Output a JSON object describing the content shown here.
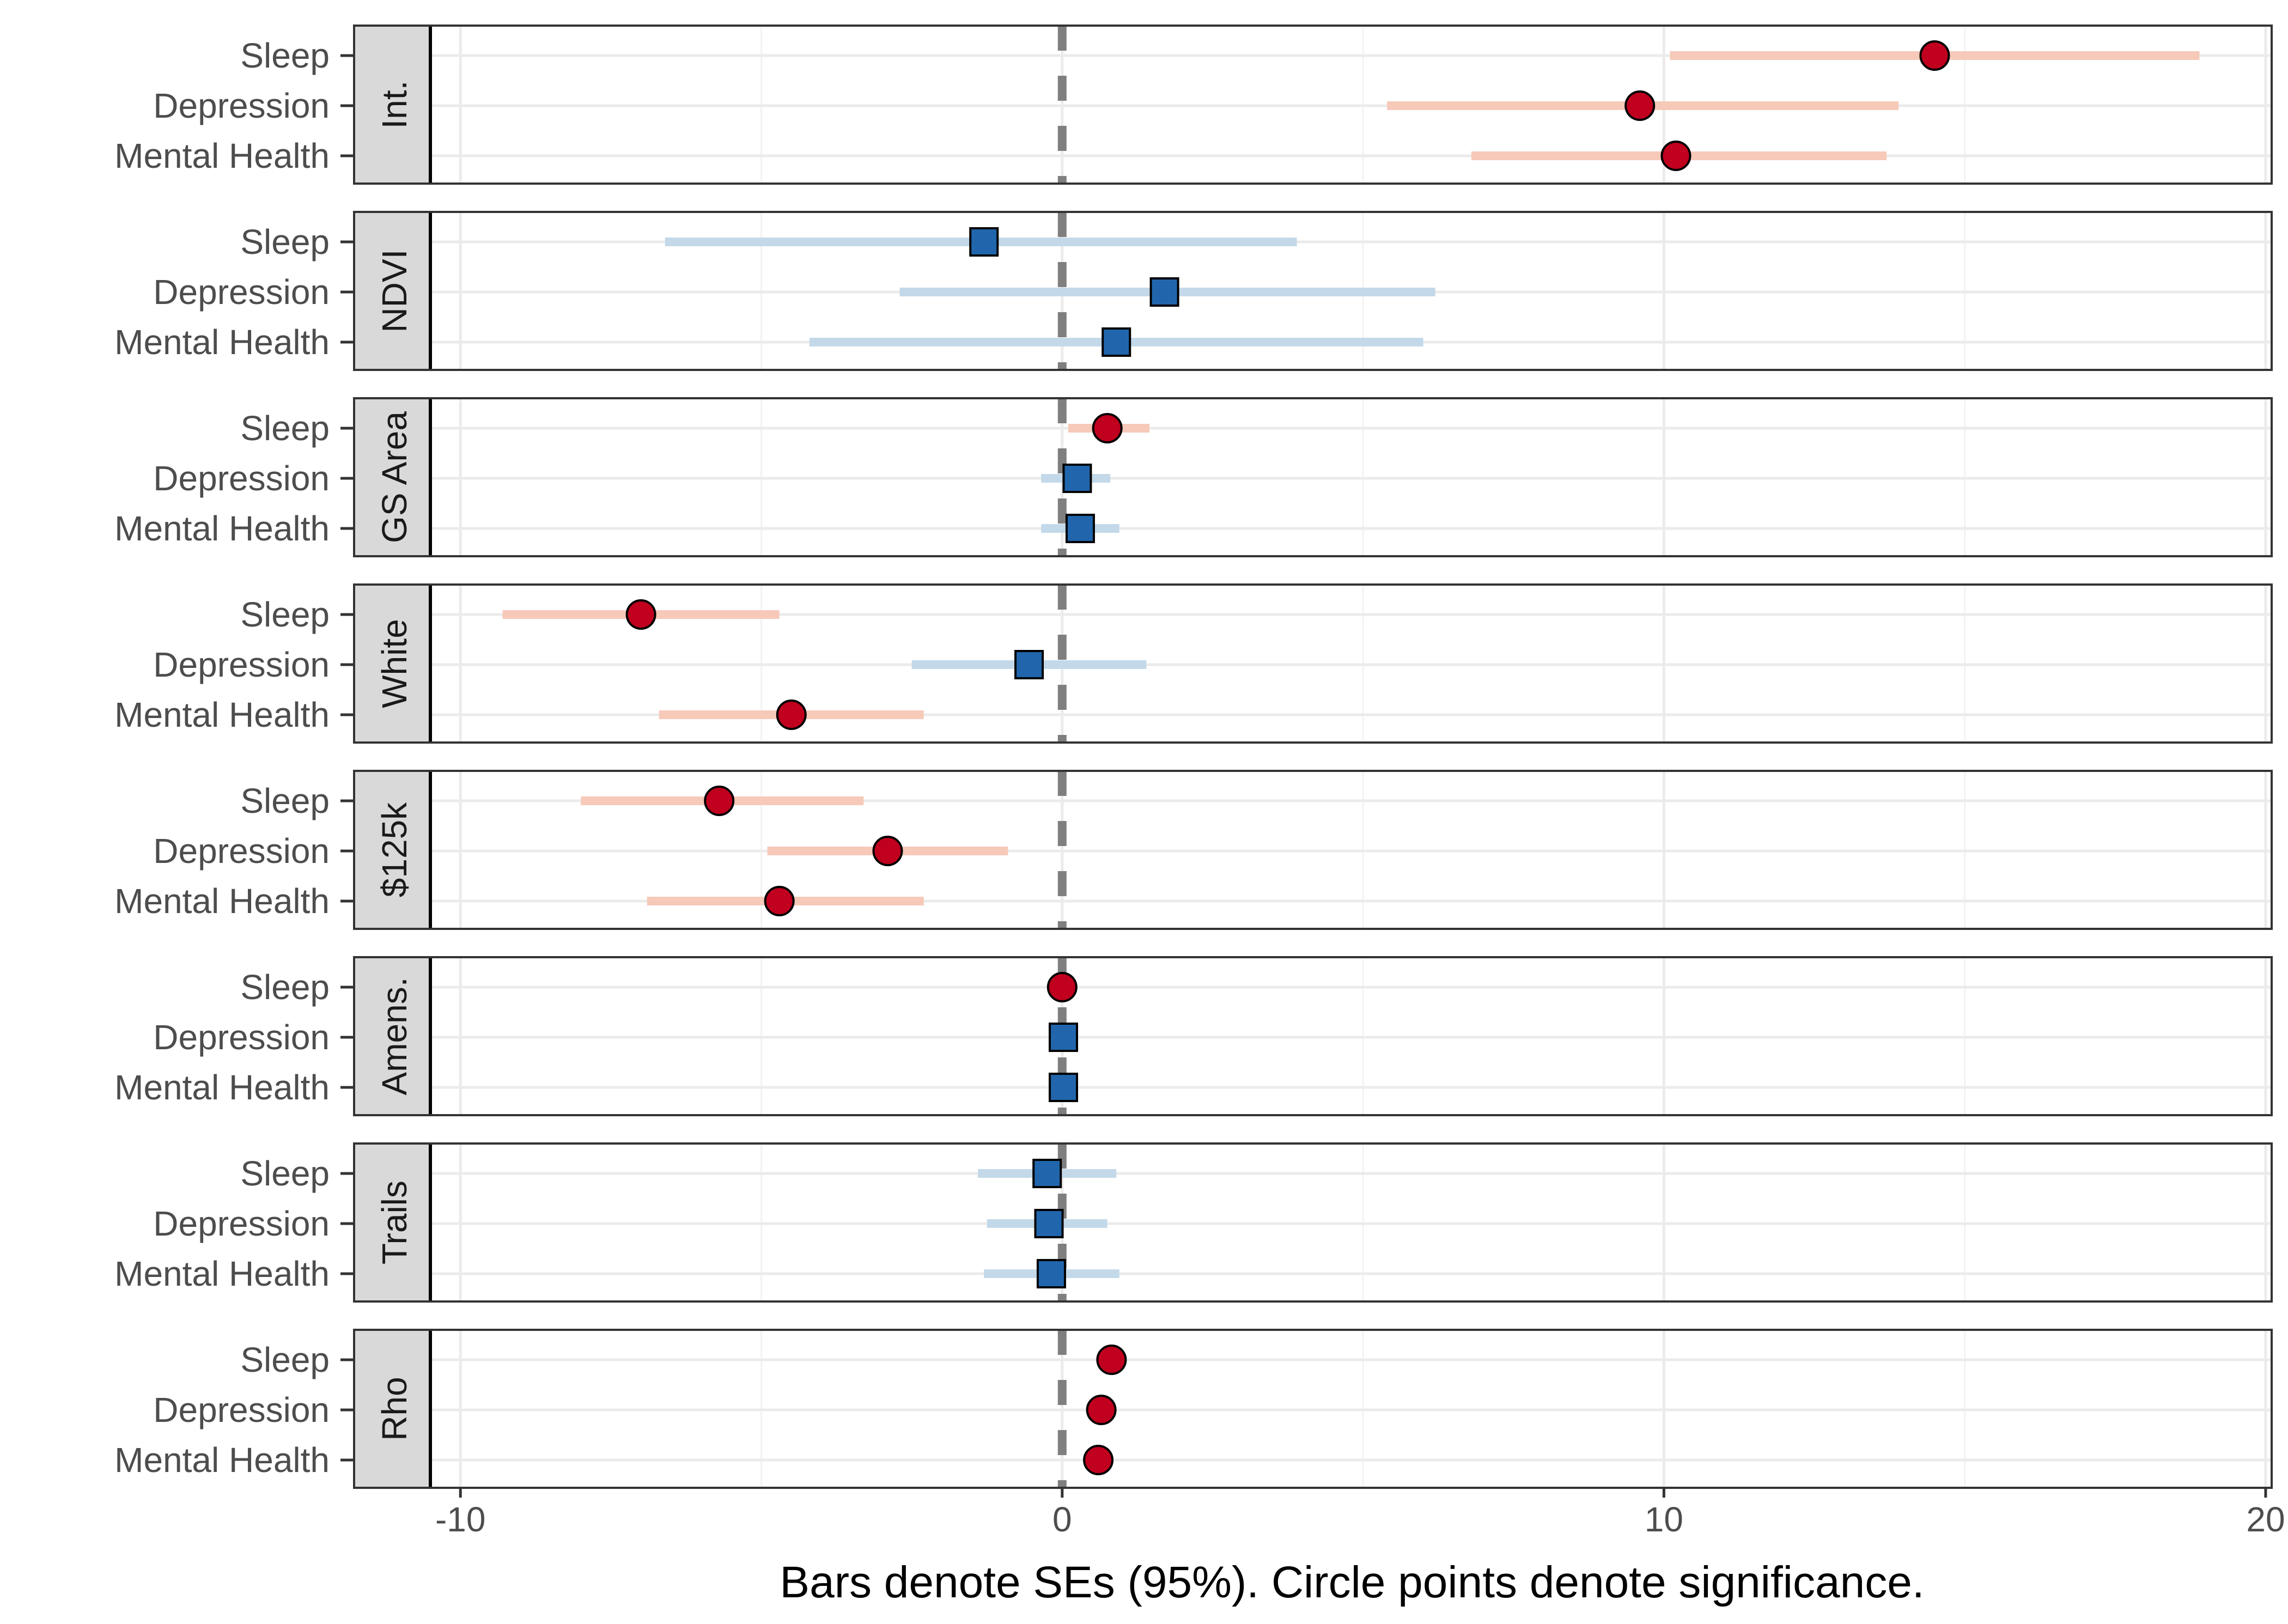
{
  "chart_data": {
    "type": "forest",
    "xlabel": "Bars denote SEs (95%). Circle points denote significance.",
    "xlim": [
      -10.5,
      20.1
    ],
    "x_ticks": [
      -10,
      0,
      10,
      20
    ],
    "x_tick_labels": [
      "-10",
      "0",
      "10",
      "20"
    ],
    "reference_line_x": 0,
    "grid": true,
    "row_labels": [
      "Sleep",
      "Depression",
      "Mental Health"
    ],
    "marker_meaning": {
      "circle": "significant",
      "square": "not significant"
    },
    "colors": {
      "significant_point": "#c0001e",
      "significant_bar": "#f6c9b9",
      "nonsignificant_point": "#2166ac",
      "nonsignificant_bar": "#c3d9ea",
      "strip_background": "#d9d9d9",
      "reference_line": "#7f7f7f",
      "grid": "#ebebeb"
    },
    "panels": [
      {
        "label": "Int.",
        "rows": [
          {
            "outcome": "Sleep",
            "estimate": 14.5,
            "lower": 10.1,
            "upper": 18.9,
            "significant": true
          },
          {
            "outcome": "Depression",
            "estimate": 9.6,
            "lower": 5.4,
            "upper": 13.9,
            "significant": true
          },
          {
            "outcome": "Mental Health",
            "estimate": 10.2,
            "lower": 6.8,
            "upper": 13.7,
            "significant": true
          }
        ]
      },
      {
        "label": "NDVI",
        "rows": [
          {
            "outcome": "Sleep",
            "estimate": -1.3,
            "lower": -6.6,
            "upper": 3.9,
            "significant": false
          },
          {
            "outcome": "Depression",
            "estimate": 1.7,
            "lower": -2.7,
            "upper": 6.2,
            "significant": false
          },
          {
            "outcome": "Mental Health",
            "estimate": 0.9,
            "lower": -4.2,
            "upper": 6.0,
            "significant": false
          }
        ]
      },
      {
        "label": "GS Area",
        "rows": [
          {
            "outcome": "Sleep",
            "estimate": 0.75,
            "lower": 0.1,
            "upper": 1.45,
            "significant": true
          },
          {
            "outcome": "Depression",
            "estimate": 0.25,
            "lower": -0.35,
            "upper": 0.8,
            "significant": false
          },
          {
            "outcome": "Mental Health",
            "estimate": 0.3,
            "lower": -0.35,
            "upper": 0.95,
            "significant": false
          }
        ]
      },
      {
        "label": "White",
        "rows": [
          {
            "outcome": "Sleep",
            "estimate": -7.0,
            "lower": -9.3,
            "upper": -4.7,
            "significant": true
          },
          {
            "outcome": "Depression",
            "estimate": -0.55,
            "lower": -2.5,
            "upper": 1.4,
            "significant": false
          },
          {
            "outcome": "Mental Health",
            "estimate": -4.5,
            "lower": -6.7,
            "upper": -2.3,
            "significant": true
          }
        ]
      },
      {
        "label": "$125k",
        "rows": [
          {
            "outcome": "Sleep",
            "estimate": -5.7,
            "lower": -8.0,
            "upper": -3.3,
            "significant": true
          },
          {
            "outcome": "Depression",
            "estimate": -2.9,
            "lower": -4.9,
            "upper": -0.9,
            "significant": true
          },
          {
            "outcome": "Mental Health",
            "estimate": -4.7,
            "lower": -6.9,
            "upper": -2.3,
            "significant": true
          }
        ]
      },
      {
        "label": "Amens.",
        "rows": [
          {
            "outcome": "Sleep",
            "estimate": 0.0,
            "lower": -0.05,
            "upper": 0.05,
            "significant": true
          },
          {
            "outcome": "Depression",
            "estimate": 0.02,
            "lower": -0.05,
            "upper": 0.08,
            "significant": false
          },
          {
            "outcome": "Mental Health",
            "estimate": 0.02,
            "lower": -0.05,
            "upper": 0.08,
            "significant": false
          }
        ]
      },
      {
        "label": "Trails",
        "rows": [
          {
            "outcome": "Sleep",
            "estimate": -0.25,
            "lower": -1.4,
            "upper": 0.9,
            "significant": false
          },
          {
            "outcome": "Depression",
            "estimate": -0.22,
            "lower": -1.25,
            "upper": 0.75,
            "significant": false
          },
          {
            "outcome": "Mental Health",
            "estimate": -0.18,
            "lower": -1.3,
            "upper": 0.95,
            "significant": false
          }
        ]
      },
      {
        "label": "Rho",
        "rows": [
          {
            "outcome": "Sleep",
            "estimate": 0.82,
            "lower": 0.8,
            "upper": 0.84,
            "significant": true
          },
          {
            "outcome": "Depression",
            "estimate": 0.65,
            "lower": 0.63,
            "upper": 0.67,
            "significant": true
          },
          {
            "outcome": "Mental Health",
            "estimate": 0.6,
            "lower": 0.58,
            "upper": 0.62,
            "significant": true
          }
        ]
      }
    ]
  }
}
